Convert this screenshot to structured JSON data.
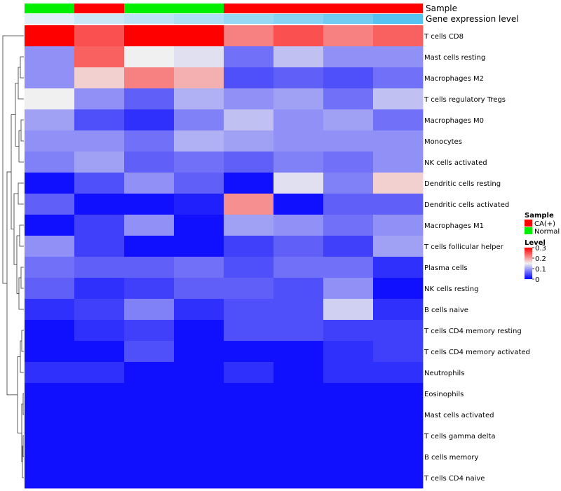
{
  "chart_data": {
    "type": "heatmap",
    "annotation_rows": [
      {
        "name": "Sample",
        "label": "Sample",
        "values": [
          "Normal",
          "CA(+)",
          "Normal",
          "Normal",
          "CA(+)",
          "CA(+)",
          "CA(+)",
          "CA(+)"
        ]
      },
      {
        "name": "Gene expression level",
        "label": "Gene expression level",
        "values": [
          0.05,
          0.2,
          0.3,
          0.4,
          0.55,
          0.65,
          0.8,
          1.0
        ]
      }
    ],
    "rows": [
      "T cells CD8",
      "Mast cells resting",
      "Macrophages M2",
      "T cells regulatory  Tregs",
      "Macrophages M0",
      "Monocytes",
      "NK cells activated",
      "Dendritic cells resting",
      "Dendritic cells activated",
      "Macrophages M1",
      "T cells follicular helper",
      "Plasma cells",
      "NK cells resting",
      "B cells naive",
      "T cells CD4 memory resting",
      "T cells CD4 memory activated",
      "Neutrophils",
      "Eosinophils",
      "Mast cells activated",
      "T cells gamma delta",
      "B cells memory",
      "T cells CD4 naive"
    ],
    "values": [
      [
        0.3,
        0.25,
        0.3,
        0.3,
        0.22,
        0.25,
        0.22,
        0.24
      ],
      [
        0.09,
        0.24,
        0.15,
        0.14,
        0.07,
        0.12,
        0.09,
        0.09
      ],
      [
        0.09,
        0.17,
        0.22,
        0.19,
        0.05,
        0.06,
        0.05,
        0.07
      ],
      [
        0.15,
        0.09,
        0.06,
        0.11,
        0.09,
        0.1,
        0.07,
        0.12
      ],
      [
        0.1,
        0.05,
        0.03,
        0.08,
        0.12,
        0.09,
        0.1,
        0.07
      ],
      [
        0.09,
        0.09,
        0.07,
        0.11,
        0.1,
        0.09,
        0.09,
        0.09
      ],
      [
        0.08,
        0.1,
        0.06,
        0.07,
        0.06,
        0.08,
        0.07,
        0.09
      ],
      [
        0.01,
        0.05,
        0.09,
        0.06,
        0.01,
        0.14,
        0.08,
        0.17
      ],
      [
        0.06,
        0.01,
        0.01,
        0.02,
        0.21,
        0.01,
        0.06,
        0.06
      ],
      [
        0.01,
        0.04,
        0.09,
        0.01,
        0.1,
        0.09,
        0.07,
        0.09
      ],
      [
        0.09,
        0.04,
        0.01,
        0.01,
        0.04,
        0.06,
        0.04,
        0.1
      ],
      [
        0.07,
        0.06,
        0.06,
        0.07,
        0.05,
        0.07,
        0.07,
        0.03
      ],
      [
        0.06,
        0.03,
        0.04,
        0.06,
        0.06,
        0.05,
        0.09,
        0.01
      ],
      [
        0.03,
        0.04,
        0.08,
        0.03,
        0.05,
        0.05,
        0.13,
        0.03
      ],
      [
        0.01,
        0.03,
        0.04,
        0.01,
        0.05,
        0.05,
        0.04,
        0.04
      ],
      [
        0.01,
        0.01,
        0.05,
        0.01,
        0.01,
        0.01,
        0.03,
        0.04
      ],
      [
        0.03,
        0.03,
        0.01,
        0.01,
        0.03,
        0.01,
        0.03,
        0.03
      ],
      [
        0.01,
        0.01,
        0.01,
        0.01,
        0.01,
        0.01,
        0.01,
        0.01
      ],
      [
        0.01,
        0.01,
        0.01,
        0.01,
        0.01,
        0.01,
        0.01,
        0.01
      ],
      [
        0.01,
        0.01,
        0.01,
        0.01,
        0.01,
        0.01,
        0.01,
        0.01
      ],
      [
        0.01,
        0.01,
        0.01,
        0.01,
        0.01,
        0.01,
        0.01,
        0.01
      ],
      [
        0.01,
        0.01,
        0.01,
        0.01,
        0.01,
        0.01,
        0.01,
        0.01
      ]
    ],
    "color_scale": {
      "min": 0,
      "mid": 0.15,
      "max": 0.3,
      "low_color": "#0000ff",
      "mid_color": "#f0f0f0",
      "high_color": "#ff0000"
    },
    "legends": [
      {
        "title": "Sample",
        "entries": [
          {
            "label": "CA(+)",
            "color": "#ff0000"
          },
          {
            "label": "Normal",
            "color": "#00ee00"
          }
        ]
      },
      {
        "title": "Level",
        "ticks": [
          "0.3",
          "0.2",
          "0.1",
          "0"
        ],
        "tick_values": [
          0.3,
          0.2,
          0.1,
          0
        ]
      }
    ],
    "colors": {
      "ca_positive": "#ff0000",
      "normal": "#00ee00",
      "expr_low": "#e8f2f8",
      "expr_high": "#55c2f0",
      "dendrogram_line": "#333333"
    },
    "row_dendrogram": true
  }
}
